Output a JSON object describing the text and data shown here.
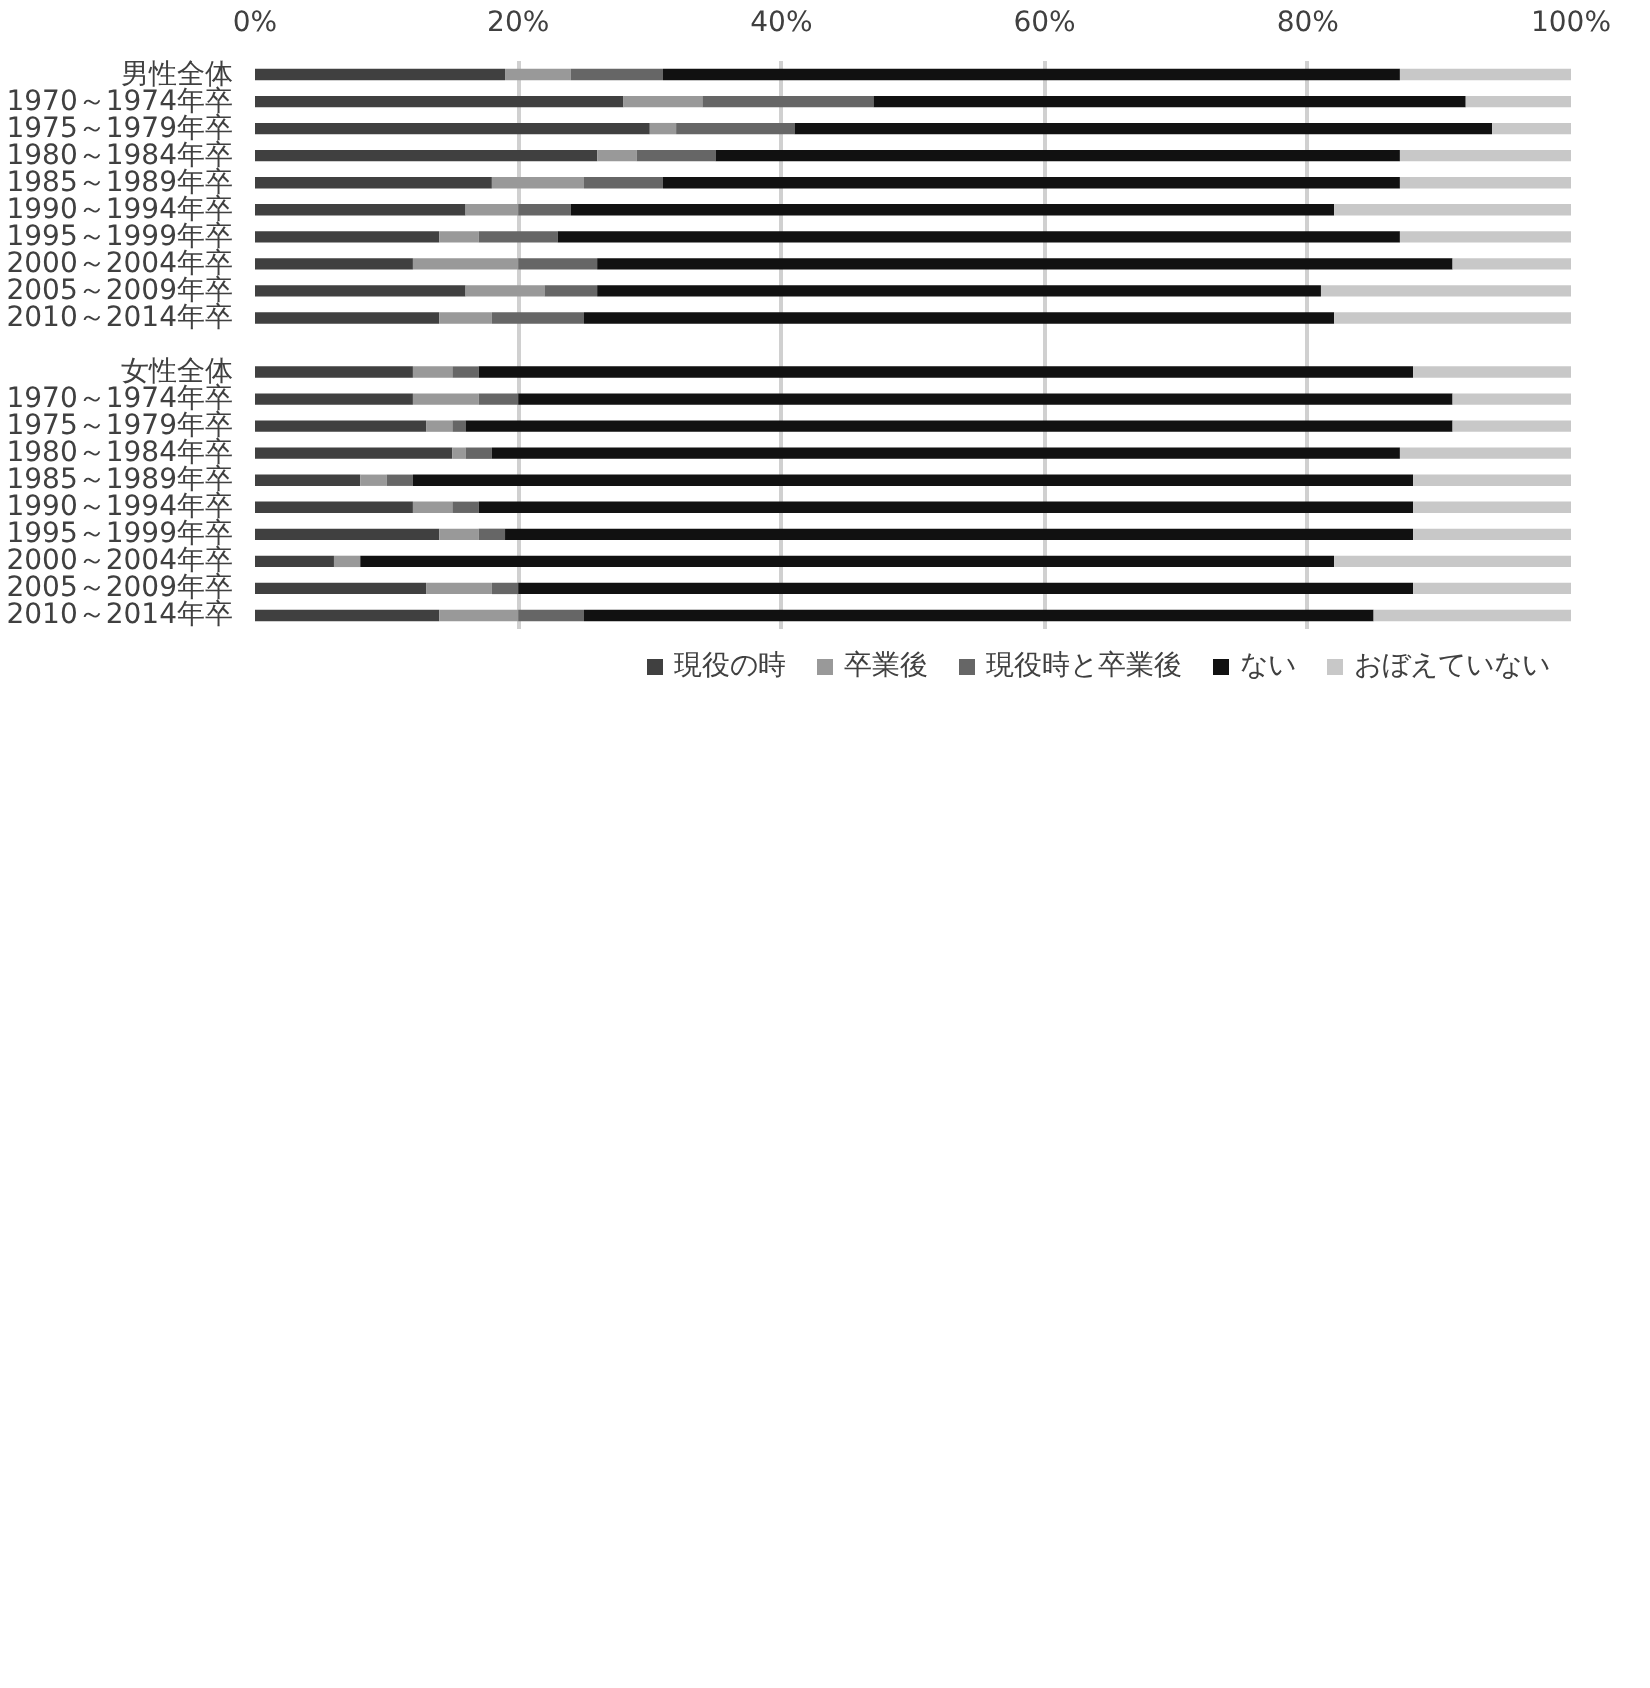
{
  "chart_data": {
    "type": "bar",
    "orientation": "horizontal",
    "stacked": true,
    "categories": [
      "男性全体",
      "1970～1974年卒",
      "1975～1979年卒",
      "1980～1984年卒",
      "1985～1989年卒",
      "1990～1994年卒",
      "1995～1999年卒",
      "2000～2004年卒",
      "2005～2009年卒",
      "2010～2014年卒",
      null,
      "女性全体",
      "1970～1974年卒",
      "1975～1979年卒",
      "1980～1984年卒",
      "1985～1989年卒",
      "1990～1994年卒",
      "1995～1999年卒",
      "2000～2004年卒",
      "2005～2009年卒",
      "2010～2014年卒"
    ],
    "series": [
      {
        "name": "現役の時",
        "color": "#404040",
        "values": [
          19,
          28,
          30,
          26,
          18,
          16,
          14,
          12,
          16,
          14,
          null,
          12,
          12,
          13,
          15,
          8,
          12,
          14,
          6,
          13,
          14
        ]
      },
      {
        "name": "卒業後",
        "color": "#999999",
        "values": [
          5,
          6,
          2,
          3,
          7,
          4,
          3,
          8,
          6,
          4,
          null,
          3,
          5,
          2,
          1,
          2,
          3,
          3,
          2,
          5,
          6
        ]
      },
      {
        "name": "現役時と卒業後",
        "color": "#666666",
        "values": [
          7,
          13,
          9,
          6,
          6,
          4,
          6,
          6,
          4,
          7,
          null,
          2,
          3,
          1,
          2,
          2,
          2,
          2,
          0,
          2,
          5
        ]
      },
      {
        "name": "ない",
        "color": "#111111",
        "values": [
          56,
          45,
          53,
          52,
          56,
          58,
          64,
          65,
          55,
          57,
          null,
          71,
          71,
          75,
          69,
          76,
          71,
          69,
          74,
          68,
          60
        ]
      },
      {
        "name": "おぼえていない",
        "color": "#c8c8c8",
        "values": [
          13,
          8,
          6,
          13,
          13,
          18,
          13,
          9,
          19,
          18,
          null,
          12,
          9,
          9,
          13,
          12,
          12,
          12,
          18,
          12,
          15
        ]
      }
    ],
    "xlim": [
      0,
      100
    ],
    "xticks": [
      {
        "value": 0,
        "label": "0%"
      },
      {
        "value": 20,
        "label": "20%"
      },
      {
        "value": 40,
        "label": "40%"
      },
      {
        "value": 60,
        "label": "60%"
      },
      {
        "value": 80,
        "label": "80%"
      },
      {
        "value": 100,
        "label": "100%"
      }
    ],
    "grid": "x",
    "legend": "bottom"
  }
}
